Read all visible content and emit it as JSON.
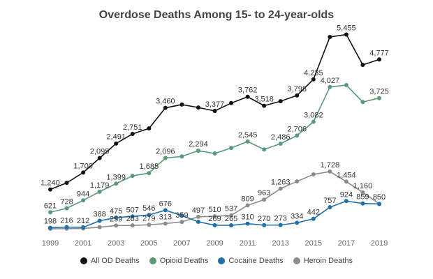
{
  "chart_data": {
    "type": "line",
    "title": "Overdose Deaths Among 15- to 24-year-olds",
    "xlabel": "",
    "ylabel": "",
    "x": [
      1999,
      2000,
      2001,
      2002,
      2003,
      2004,
      2005,
      2006,
      2007,
      2008,
      2009,
      2010,
      2011,
      2012,
      2013,
      2014,
      2015,
      2016,
      2017,
      2018,
      2019
    ],
    "x_tick_labels": [
      "1999",
      "2001",
      "2003",
      "2005",
      "2007",
      "2009",
      "2011",
      "2013",
      "2015",
      "2017",
      "2019"
    ],
    "ylim": [
      0,
      5600
    ],
    "grid": false,
    "legend_position": "bottom",
    "series": [
      {
        "name": "All OD Deaths",
        "color": "#111111",
        "values": [
          1240,
          1420,
          1700,
          2095,
          2491,
          2751,
          2900,
          3460,
          3550,
          3470,
          3377,
          3590,
          3762,
          3518,
          3640,
          3798,
          4235,
          5390,
          5455,
          4630,
          4777
        ],
        "labels": [
          "1,240",
          null,
          "1,700",
          "2,095",
          "2,491",
          "2,751",
          null,
          "3,460",
          null,
          null,
          "3,377",
          null,
          "3,762",
          "3,518",
          null,
          "3,798",
          "4,235",
          null,
          "5,455",
          null,
          "4,777"
        ]
      },
      {
        "name": "Opioid Deaths",
        "color": "#5a9a78",
        "values": [
          621,
          728,
          944,
          1179,
          1399,
          1610,
          1685,
          2096,
          2140,
          2294,
          2220,
          2370,
          2545,
          2330,
          2486,
          2706,
          3082,
          4027,
          4080,
          3620,
          3725
        ],
        "labels": [
          "621",
          "728",
          "944",
          "1,179",
          "1,399",
          null,
          "1,685",
          "2,096",
          null,
          "2,294",
          null,
          null,
          "2,545",
          null,
          "2,486",
          "2,706",
          "3,082",
          "4,027",
          null,
          null,
          "3,725"
        ]
      },
      {
        "name": "Cocaine Deaths",
        "color": "#1f6fa8",
        "values": [
          198,
          216,
          212,
          388,
          475,
          507,
          546,
          676,
          530,
          360,
          269,
          265,
          310,
          270,
          273,
          334,
          442,
          757,
          924,
          859,
          845
        ],
        "labels": [
          "198",
          "216",
          "212",
          "388",
          "475",
          "507",
          "546",
          "676",
          null,
          null,
          "269",
          "265",
          "310",
          "270",
          "273",
          "334",
          "442",
          "757",
          "924",
          "859",
          null
        ]
      },
      {
        "name": "Heroin Deaths",
        "color": "#8c8c8c",
        "values": [
          170,
          175,
          180,
          215,
          259,
          263,
          279,
          313,
          359,
          497,
          510,
          537,
          809,
          963,
          1263,
          1460,
          1650,
          1728,
          1454,
          1160,
          850
        ],
        "labels": [
          null,
          null,
          null,
          null,
          "259",
          "263",
          "279",
          "313",
          "359",
          "497",
          "510",
          "537",
          "809",
          "963",
          "1,263",
          null,
          null,
          "1,728",
          "1,454",
          "1,160",
          "850"
        ]
      }
    ]
  }
}
